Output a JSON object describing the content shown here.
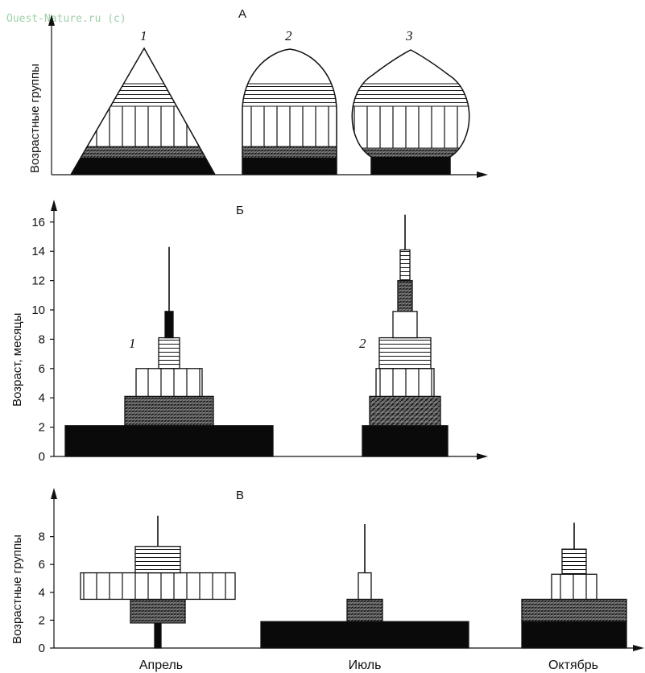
{
  "watermark": "Ouest-Nature.ru (c)",
  "panels": {
    "A": {
      "letter": "А",
      "ylabel": "Возрастные группы",
      "pyramid_labels": [
        "1",
        "2",
        "3"
      ]
    },
    "B": {
      "letter": "Б",
      "ylabel": "Возраст, месяцы",
      "pyramid_labels": [
        "1",
        "2"
      ]
    },
    "C": {
      "letter": "В",
      "ylabel": "Возрастные группы",
      "xlabels": [
        "Апрель",
        "Июль",
        "Октябрь"
      ]
    }
  },
  "chart_data": [
    {
      "type": "diagram",
      "title": "А",
      "ylabel": "Возрастные группы",
      "pyramids": [
        {
          "label": "1",
          "shape": "triangle"
        },
        {
          "label": "2",
          "shape": "bell"
        },
        {
          "label": "3",
          "shape": "urn"
        }
      ]
    },
    {
      "type": "bar",
      "title": "Б",
      "ylabel": "Возраст, месяцы",
      "ylim": [
        0,
        17
      ],
      "yticks": [
        0,
        2,
        4,
        6,
        8,
        10,
        12,
        14,
        16
      ],
      "series": [
        {
          "name": "1",
          "layers": [
            {
              "from": 0,
              "to": 2.1,
              "fill": "solid"
            },
            {
              "from": 2.1,
              "to": 4.1,
              "fill": "dense"
            },
            {
              "from": 4.1,
              "to": 6.0,
              "fill": "vertical"
            },
            {
              "from": 6.0,
              "to": 8.1,
              "fill": "horizontal"
            },
            {
              "from": 8.1,
              "to": 9.9,
              "fill": "solid"
            }
          ],
          "tail_to": 14.3
        },
        {
          "name": "2",
          "layers": [
            {
              "from": 0,
              "to": 2.1,
              "fill": "solid"
            },
            {
              "from": 2.1,
              "to": 4.1,
              "fill": "hatch"
            },
            {
              "from": 4.1,
              "to": 6.0,
              "fill": "vertical"
            },
            {
              "from": 6.0,
              "to": 8.1,
              "fill": "horizontal"
            },
            {
              "from": 8.1,
              "to": 9.9,
              "fill": "empty"
            },
            {
              "from": 9.9,
              "to": 12.0,
              "fill": "dense"
            },
            {
              "from": 12.0,
              "to": 14.1,
              "fill": "horizontal"
            }
          ],
          "tail_to": 16.5
        }
      ]
    },
    {
      "type": "bar",
      "title": "В",
      "ylabel": "Возрастные группы",
      "ylim": [
        0,
        9.8
      ],
      "yticks": [
        0,
        2,
        4,
        6,
        8
      ],
      "categories": [
        "Апрель",
        "Июль",
        "Октябрь"
      ],
      "series": [
        {
          "name": "Апрель",
          "layers": [
            {
              "from": 0,
              "to": 1.8,
              "fill": "solid"
            },
            {
              "from": 1.8,
              "to": 3.5,
              "fill": "dense"
            },
            {
              "from": 3.5,
              "to": 5.4,
              "fill": "vertical"
            },
            {
              "from": 5.4,
              "to": 7.3,
              "fill": "horizontal"
            }
          ],
          "tail_to": 9.5
        },
        {
          "name": "Июль",
          "layers": [
            {
              "from": 0,
              "to": 1.9,
              "fill": "solid"
            },
            {
              "from": 1.9,
              "to": 3.5,
              "fill": "dense"
            },
            {
              "from": 3.5,
              "to": 5.4,
              "fill": "empty"
            }
          ],
          "tail_to": 8.9
        },
        {
          "name": "Октябрь",
          "layers": [
            {
              "from": 0,
              "to": 1.9,
              "fill": "solid"
            },
            {
              "from": 1.9,
              "to": 3.5,
              "fill": "dense"
            },
            {
              "from": 3.5,
              "to": 5.3,
              "fill": "vertical"
            },
            {
              "from": 5.3,
              "to": 7.1,
              "fill": "horizontal"
            }
          ],
          "tail_to": 9.0
        }
      ]
    }
  ]
}
